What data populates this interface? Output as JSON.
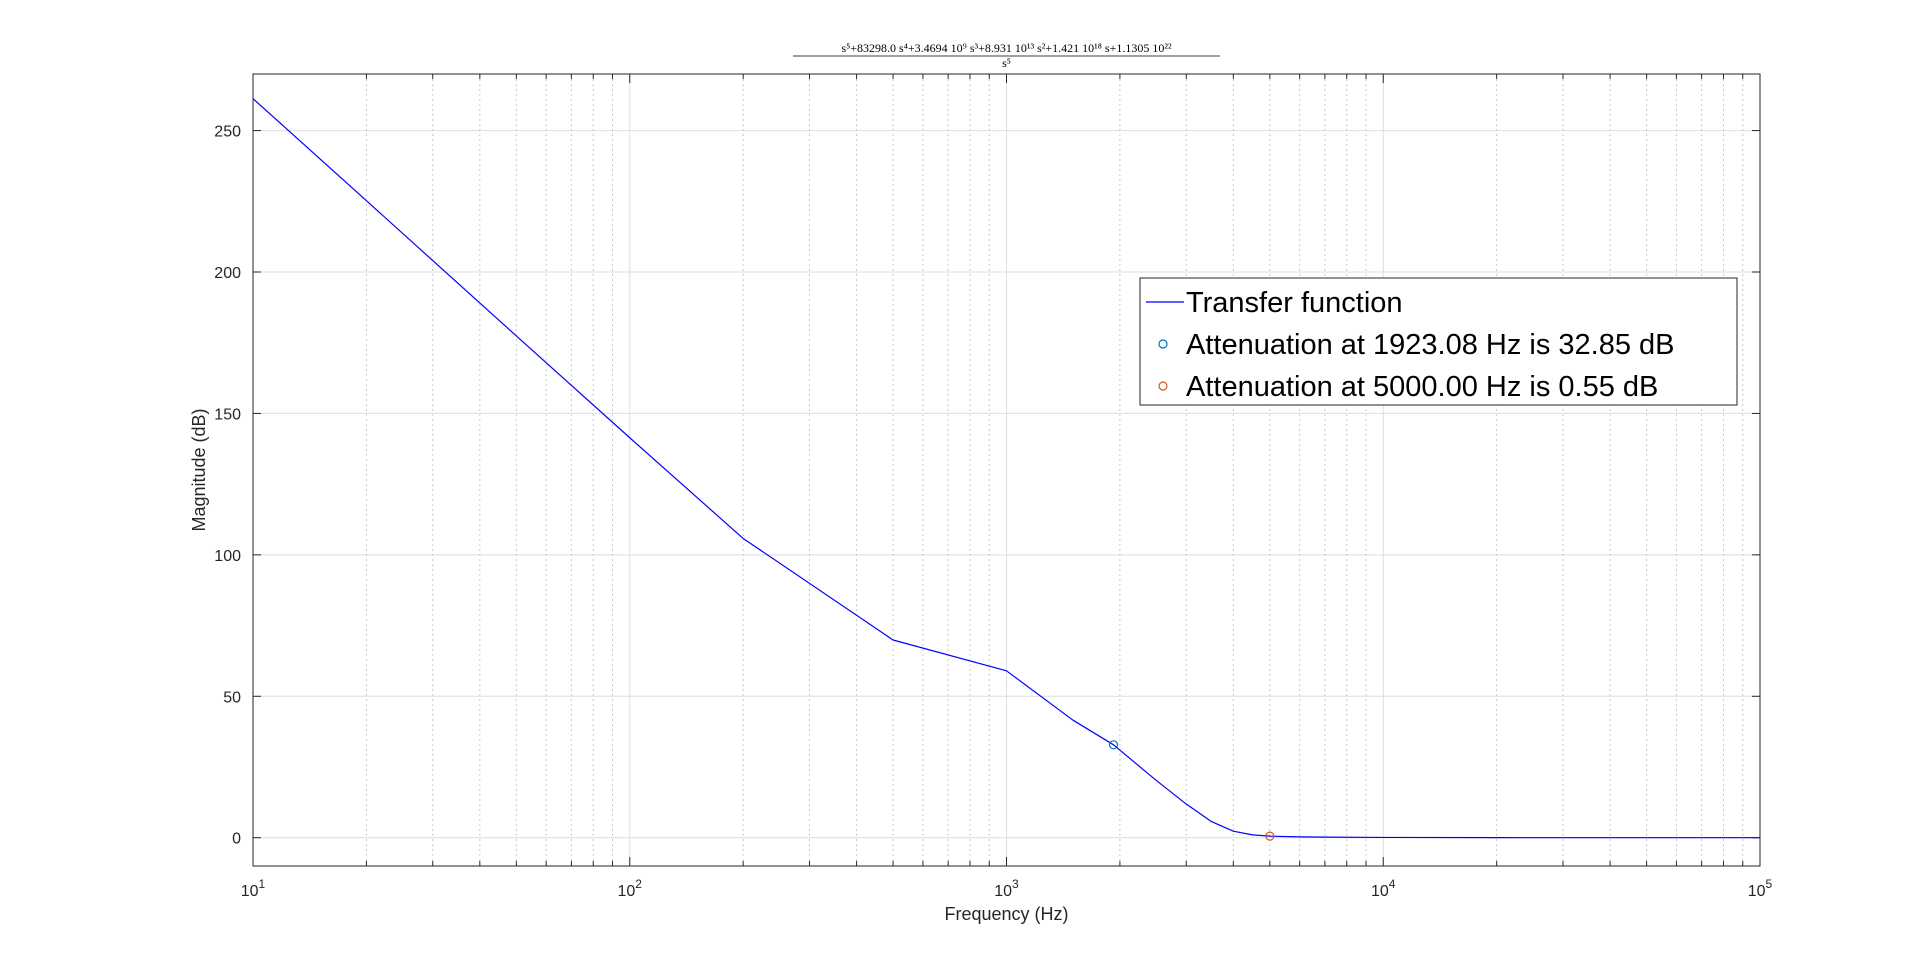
{
  "chart_data": {
    "type": "line",
    "title": {
      "numerator": "s⁵+83298.0 s⁴+3.4694 10⁹ s³+8.931 10¹³ s²+1.421 10¹⁸ s+1.1305 10²²",
      "denominator": "s⁵"
    },
    "xlabel": "Frequency (Hz)",
    "ylabel": "Magnitude (dB)",
    "x_scale": "log",
    "xlim": [
      10,
      100000
    ],
    "ylim": [
      -10,
      270
    ],
    "x_ticks": [
      {
        "value": 10,
        "base": "10",
        "exp": "1"
      },
      {
        "value": 100,
        "base": "10",
        "exp": "2"
      },
      {
        "value": 1000,
        "base": "10",
        "exp": "3"
      },
      {
        "value": 10000,
        "base": "10",
        "exp": "4"
      },
      {
        "value": 100000,
        "base": "10",
        "exp": "5"
      }
    ],
    "y_ticks": [
      {
        "value": 0,
        "label": "0"
      },
      {
        "value": 50,
        "label": "50"
      },
      {
        "value": 100,
        "label": "100"
      },
      {
        "value": 150,
        "label": "150"
      },
      {
        "value": 200,
        "label": "200"
      },
      {
        "value": 250,
        "label": "250"
      }
    ],
    "grid": true,
    "legend_position": "top-right",
    "series": [
      {
        "name": "Transfer function",
        "kind": "line",
        "color": "#0000ff",
        "x": [
          10,
          20,
          50,
          100,
          200,
          500,
          1000,
          1500,
          1923.08,
          2500,
          3000,
          3500,
          4000,
          4500,
          5000,
          6000,
          7000,
          10000,
          20000,
          50000,
          100000
        ],
        "y": [
          261.3,
          225.2,
          177.4,
          141.4,
          105.8,
          69.9,
          59.0,
          41.6,
          32.85,
          20.2,
          11.9,
          5.7,
          2.3,
          1.0,
          0.55,
          0.3,
          0.2,
          0.1,
          0.02,
          0.0,
          0.0
        ]
      },
      {
        "name": "Attenuation at 1923.08 Hz is 32.85 dB",
        "kind": "marker",
        "color": "#0072bd",
        "x": [
          1923.08
        ],
        "y": [
          32.85
        ]
      },
      {
        "name": "Attenuation at 5000.00 Hz is 0.55 dB",
        "kind": "marker",
        "color": "#d95319",
        "x": [
          5000
        ],
        "y": [
          0.55
        ]
      }
    ]
  }
}
